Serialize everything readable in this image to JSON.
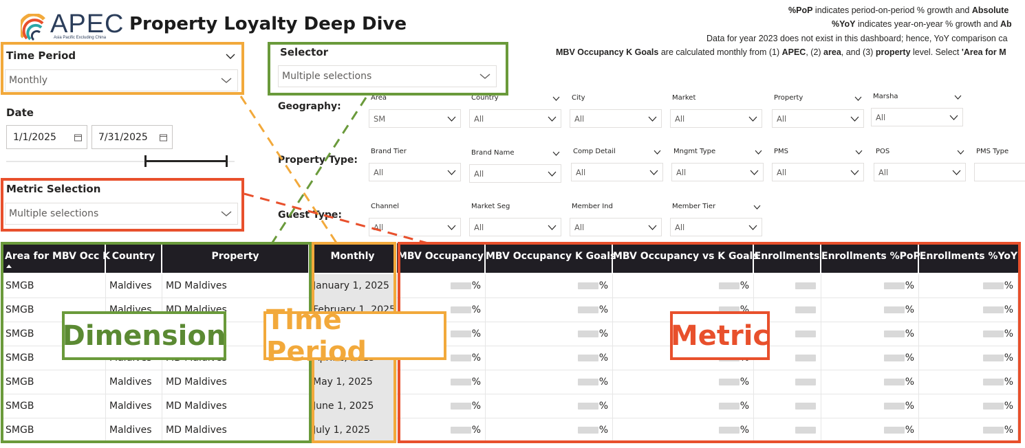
{
  "header": {
    "logo_name": "APEC",
    "logo_subtitle": "Asia Pacific Excluding China",
    "title": "Property Loyalty Deep Dive"
  },
  "notes": {
    "line1_bold1": "%PoP",
    "line1_text": " indicates period-on-period % growth and ",
    "line1_bold2": "Absolute",
    "line2_bold1": "%YoY",
    "line2_text": " indicates year-on-year % growth and ",
    "line2_bold2": "Ab",
    "line3": "Data for year 2023 does not exist in this dashboard; hence, YoY comparison ca",
    "line4_bold1": "MBV Occupancy K Goals",
    "line4_text1": " are calculated monthly from (1) ",
    "line4_bold2": "APEC",
    "line4_text2": ", (2) ",
    "line4_bold3": "area",
    "line4_text3": ", and (3) ",
    "line4_bold4": "property",
    "line4_text4": " level. Select ",
    "line4_bold5": "'Area for M"
  },
  "time_period": {
    "label": "Time Period",
    "value": "Monthly"
  },
  "date": {
    "label": "Date",
    "start": "1/1/2025",
    "end": "7/31/2025"
  },
  "metric_selection": {
    "label": "Metric Selection",
    "value": "Multiple selections"
  },
  "selector": {
    "label": "Selector",
    "value": "Multiple selections"
  },
  "geography": {
    "label": "Geography:",
    "filters": [
      {
        "label": "Area",
        "value": "SM"
      },
      {
        "label": "Country",
        "value": "All"
      },
      {
        "label": "City",
        "value": "All"
      },
      {
        "label": "Market",
        "value": "All"
      },
      {
        "label": "Property",
        "value": "All"
      },
      {
        "label": "Marsha",
        "value": "All"
      }
    ]
  },
  "property_type": {
    "label": "Property Type:",
    "filters": [
      {
        "label": "Brand Tier",
        "value": "All"
      },
      {
        "label": "Brand Name",
        "value": "All"
      },
      {
        "label": "Comp Detail",
        "value": "All"
      },
      {
        "label": "Mngmt Type",
        "value": "All"
      },
      {
        "label": "PMS",
        "value": "All"
      },
      {
        "label": "POS",
        "value": "All"
      },
      {
        "label": "PMS Type",
        "value": ""
      }
    ]
  },
  "guest_type": {
    "label": "Guest Type:",
    "filters": [
      {
        "label": "Channel",
        "value": "All"
      },
      {
        "label": "Market Seg",
        "value": "All"
      },
      {
        "label": "Member Ind",
        "value": "All"
      },
      {
        "label": "Member Tier",
        "value": "All"
      }
    ]
  },
  "overlays": {
    "dimension": "Dimension",
    "time_period": "Time Period",
    "metric": "Metric"
  },
  "table": {
    "columns": [
      "Area for MBV Occ K",
      "Country",
      "Property",
      "Monthly",
      "MBV Occupancy",
      "MBV Occupancy K Goals",
      "MBV Occupancy vs K Goals",
      "Enrollments",
      "Enrollments %PoP",
      "Enrollments %YoY"
    ],
    "rows": [
      {
        "area": "SMGB",
        "country": "Maldives",
        "property": "MD Maldives",
        "month": "January 1, 2025",
        "m1": "%",
        "m2": "%",
        "m3": "%",
        "m4": "",
        "m5": "%",
        "m6": "%"
      },
      {
        "area": "SMGB",
        "country": "Maldives",
        "property": "MD Maldives",
        "month": "February 1, 2025",
        "m1": "%",
        "m2": "%",
        "m3": "%",
        "m4": "",
        "m5": "%",
        "m6": "%"
      },
      {
        "area": "SMGB",
        "country": "Maldives",
        "property": "MD Maldives",
        "month": "March 1, 2025",
        "m1": "%",
        "m2": "%",
        "m3": "%",
        "m4": "",
        "m5": "%",
        "m6": "%"
      },
      {
        "area": "SMGB",
        "country": "Maldives",
        "property": "MD Maldives",
        "month": "April 1, 2025",
        "m1": "%",
        "m2": "%",
        "m3": "%",
        "m4": "",
        "m5": "%",
        "m6": "%"
      },
      {
        "area": "SMGB",
        "country": "Maldives",
        "property": "MD Maldives",
        "month": "May 1, 2025",
        "m1": "%",
        "m2": "%",
        "m3": "%",
        "m4": "",
        "m5": "%",
        "m6": "%"
      },
      {
        "area": "SMGB",
        "country": "Maldives",
        "property": "MD Maldives",
        "month": "June 1, 2025",
        "m1": "%",
        "m2": "%",
        "m3": "%",
        "m4": "",
        "m5": "%",
        "m6": "%"
      },
      {
        "area": "SMGB",
        "country": "Maldives",
        "property": "MD Maldives",
        "month": "July 1, 2025",
        "m1": "%",
        "m2": "%",
        "m3": "%",
        "m4": "",
        "m5": "%",
        "m6": "%"
      }
    ]
  },
  "colors": {
    "orange": "#f2a93b",
    "green": "#6a9a3b",
    "red": "#e8502c",
    "header_bg": "#201e24"
  }
}
